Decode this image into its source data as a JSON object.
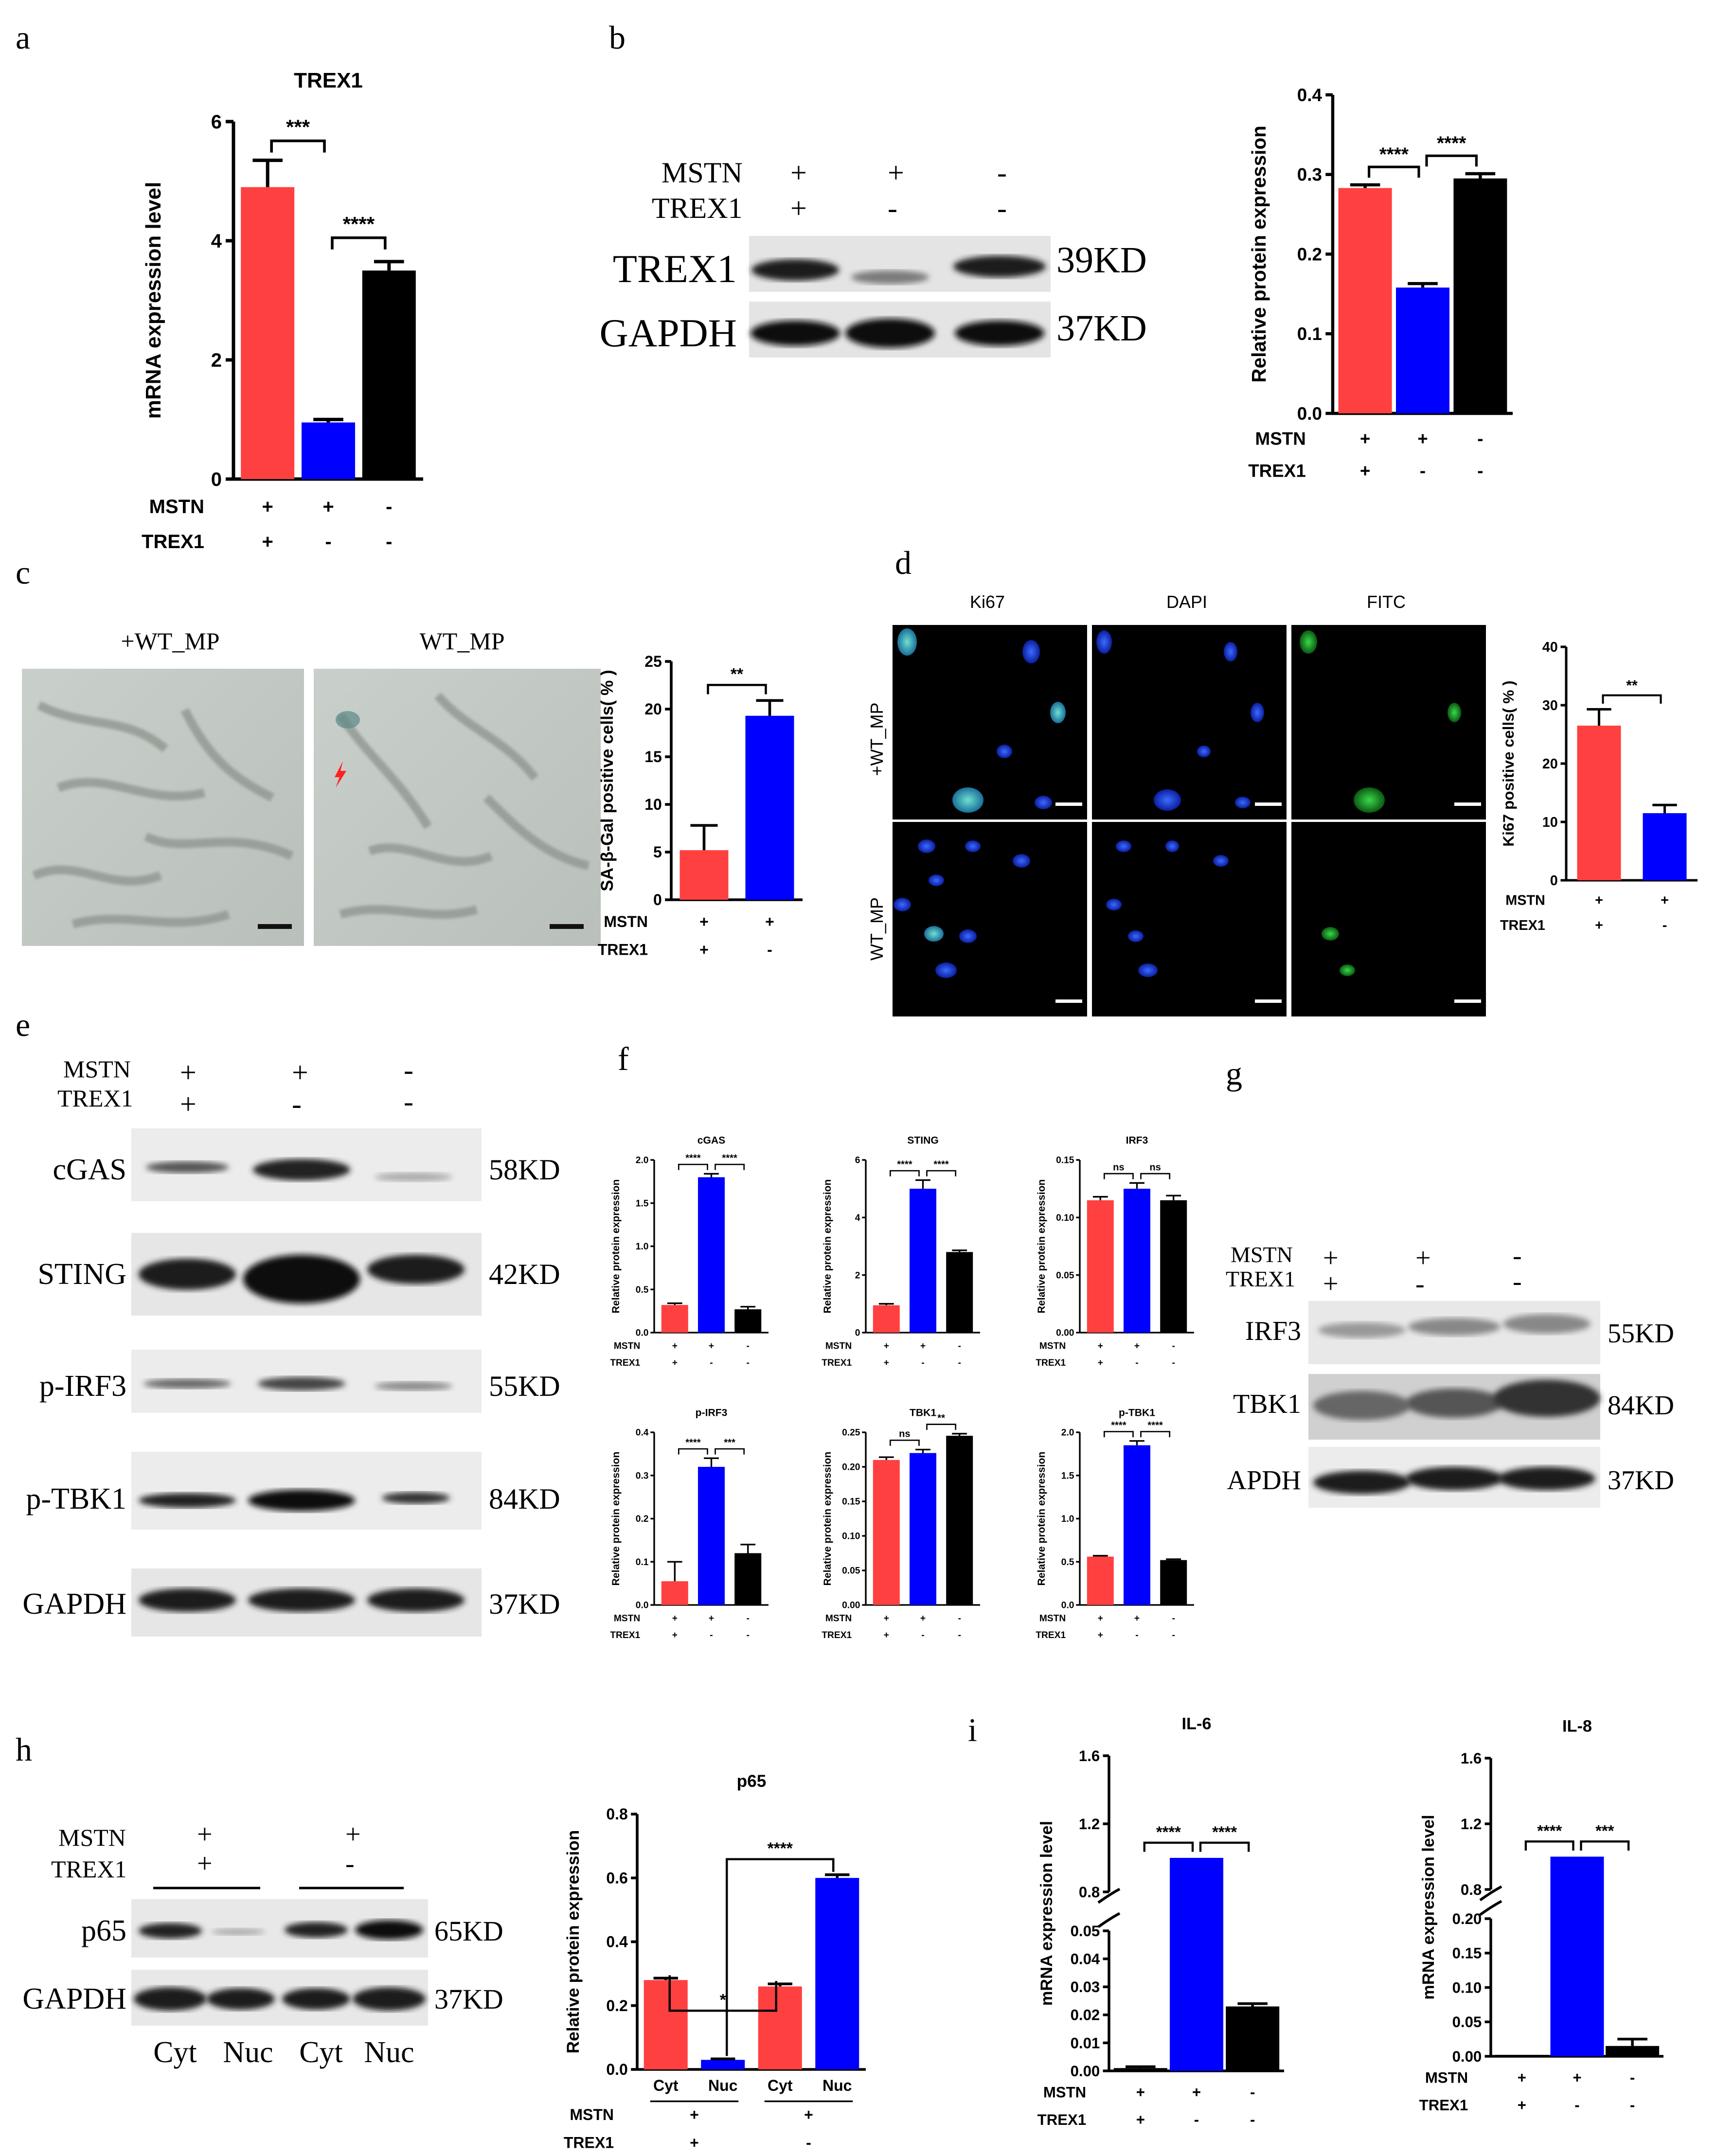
{
  "panel_labels": [
    "a",
    "b",
    "c",
    "d",
    "e",
    "f",
    "g",
    "h",
    "i"
  ],
  "colors": {
    "red": "#ff4040",
    "blue": "#0000ff",
    "black": "#000000"
  },
  "chart_data": [
    {
      "id": "a",
      "type": "bar",
      "title": "TREX1",
      "xlabel": "",
      "ylabel": "mRNA expression level",
      "rows": [
        {
          "name": "MSTN",
          "values": [
            "+",
            "+",
            "-"
          ]
        },
        {
          "name": "TREX1",
          "values": [
            "+",
            "-",
            "-"
          ]
        }
      ],
      "values": [
        4.9,
        0.95,
        3.5
      ],
      "errors": [
        0.45,
        0.05,
        0.15
      ],
      "colors": [
        "#ff4040",
        "#0000ff",
        "#000000"
      ],
      "ylim": [
        0,
        6
      ],
      "yticks": [
        "0",
        "2",
        "4",
        "6"
      ],
      "sig": [
        {
          "from": 0,
          "to": 1,
          "label": "***"
        },
        {
          "from": 1,
          "to": 2,
          "label": "****"
        }
      ]
    },
    {
      "id": "b",
      "type": "bar",
      "title": "",
      "xlabel": "",
      "ylabel": "Relative protein expression",
      "rows": [
        {
          "name": "MSTN",
          "values": [
            "+",
            "+",
            "-"
          ]
        },
        {
          "name": "TREX1",
          "values": [
            "+",
            "-",
            "-"
          ]
        }
      ],
      "values": [
        0.283,
        0.158,
        0.295
      ],
      "errors": [
        0.004,
        0.005,
        0.006
      ],
      "colors": [
        "#ff4040",
        "#0000ff",
        "#000000"
      ],
      "ylim": [
        0,
        0.4
      ],
      "yticks": [
        "0.0",
        "0.1",
        "0.2",
        "0.3",
        "0.4"
      ],
      "sig": [
        {
          "from": 0,
          "to": 1,
          "label": "****"
        },
        {
          "from": 1,
          "to": 2,
          "label": "****"
        }
      ]
    },
    {
      "id": "c",
      "type": "bar",
      "title": "",
      "xlabel": "",
      "ylabel": "SA-β-Gal positive cells( % )",
      "rows": [
        {
          "name": "MSTN",
          "values": [
            "+",
            "+"
          ]
        },
        {
          "name": "TREX1",
          "values": [
            "+",
            "-"
          ]
        }
      ],
      "values": [
        5.2,
        19.3
      ],
      "errors": [
        2.6,
        1.6
      ],
      "colors": [
        "#ff4040",
        "#0000ff"
      ],
      "ylim": [
        0,
        25
      ],
      "yticks": [
        "0",
        "5",
        "10",
        "15",
        "20",
        "25"
      ],
      "sig": [
        {
          "from": 0,
          "to": 1,
          "label": "**"
        }
      ]
    },
    {
      "id": "d",
      "type": "bar",
      "title": "",
      "xlabel": "",
      "ylabel": "Ki67 positive cells( % )",
      "rows": [
        {
          "name": "MSTN",
          "values": [
            "+",
            "+"
          ]
        },
        {
          "name": "TREX1",
          "values": [
            "+",
            "-"
          ]
        }
      ],
      "values": [
        26.5,
        11.5
      ],
      "errors": [
        2.8,
        1.4
      ],
      "colors": [
        "#ff4040",
        "#0000ff"
      ],
      "ylim": [
        0,
        40
      ],
      "yticks": [
        "0",
        "10",
        "20",
        "30",
        "40"
      ],
      "sig": [
        {
          "from": 0,
          "to": 1,
          "label": "**"
        }
      ]
    },
    {
      "id": "f1",
      "type": "bar",
      "title": "cGAS",
      "xlabel": "",
      "ylabel": "Relative protein expression",
      "rows": [
        {
          "name": "MSTN",
          "values": [
            "+",
            "+",
            "-"
          ]
        },
        {
          "name": "TREX1",
          "values": [
            "+",
            "-",
            "-"
          ]
        }
      ],
      "values": [
        0.32,
        1.8,
        0.27
      ],
      "errors": [
        0.02,
        0.04,
        0.03
      ],
      "colors": [
        "#ff4040",
        "#0000ff",
        "#000000"
      ],
      "ylim": [
        0,
        2.0
      ],
      "yticks": [
        "0.0",
        "0.5",
        "1.0",
        "1.5",
        "2.0"
      ],
      "sig": [
        {
          "from": 0,
          "to": 1,
          "label": "****"
        },
        {
          "from": 1,
          "to": 2,
          "label": "****"
        }
      ]
    },
    {
      "id": "f2",
      "type": "bar",
      "title": "STING",
      "xlabel": "",
      "ylabel": "Relative protein expression",
      "rows": [
        {
          "name": "MSTN",
          "values": [
            "+",
            "+",
            "-"
          ]
        },
        {
          "name": "TREX1",
          "values": [
            "+",
            "-",
            "-"
          ]
        }
      ],
      "values": [
        0.95,
        5.0,
        2.8
      ],
      "errors": [
        0.05,
        0.3,
        0.06
      ],
      "colors": [
        "#ff4040",
        "#0000ff",
        "#000000"
      ],
      "ylim": [
        0,
        6
      ],
      "yticks": [
        "0",
        "2",
        "4",
        "6"
      ],
      "sig": [
        {
          "from": 0,
          "to": 1,
          "label": "****"
        },
        {
          "from": 1,
          "to": 2,
          "label": "****"
        }
      ]
    },
    {
      "id": "f3",
      "type": "bar",
      "title": "IRF3",
      "xlabel": "",
      "ylabel": "Relative protein expression",
      "rows": [
        {
          "name": "MSTN",
          "values": [
            "+",
            "+",
            "-"
          ]
        },
        {
          "name": "TREX1",
          "values": [
            "+",
            "-",
            "-"
          ]
        }
      ],
      "values": [
        0.115,
        0.125,
        0.115
      ],
      "errors": [
        0.003,
        0.005,
        0.004
      ],
      "colors": [
        "#ff4040",
        "#0000ff",
        "#000000"
      ],
      "ylim": [
        0,
        0.15
      ],
      "yticks": [
        "0.00",
        "0.05",
        "0.10",
        "0.15"
      ],
      "sig": [
        {
          "from": 0,
          "to": 1,
          "label": "ns"
        },
        {
          "from": 1,
          "to": 2,
          "label": "ns"
        }
      ]
    },
    {
      "id": "f4",
      "type": "bar",
      "title": "p-IRF3",
      "xlabel": "",
      "ylabel": "Relative protein expression",
      "rows": [
        {
          "name": "MSTN",
          "values": [
            "+",
            "+",
            "-"
          ]
        },
        {
          "name": "TREX1",
          "values": [
            "+",
            "-",
            "-"
          ]
        }
      ],
      "values": [
        0.055,
        0.32,
        0.12
      ],
      "errors": [
        0.045,
        0.02,
        0.02
      ],
      "colors": [
        "#ff4040",
        "#0000ff",
        "#000000"
      ],
      "ylim": [
        0,
        0.4
      ],
      "yticks": [
        "0.0",
        "0.1",
        "0.2",
        "0.3",
        "0.4"
      ],
      "sig": [
        {
          "from": 0,
          "to": 1,
          "label": "****"
        },
        {
          "from": 1,
          "to": 2,
          "label": "***"
        }
      ]
    },
    {
      "id": "f5",
      "type": "bar",
      "title": "TBK1",
      "xlabel": "",
      "ylabel": "Relative protein expression",
      "rows": [
        {
          "name": "MSTN",
          "values": [
            "+",
            "+",
            "-"
          ]
        },
        {
          "name": "TREX1",
          "values": [
            "+",
            "-",
            "-"
          ]
        }
      ],
      "values": [
        0.21,
        0.22,
        0.245
      ],
      "errors": [
        0.004,
        0.005,
        0.003
      ],
      "colors": [
        "#ff4040",
        "#0000ff",
        "#000000"
      ],
      "ylim": [
        0,
        0.25
      ],
      "yticks": [
        "0.00",
        "0.05",
        "0.10",
        "0.15",
        "0.20",
        "0.25"
      ],
      "sig": [
        {
          "from": 0,
          "to": 1,
          "label": "ns"
        },
        {
          "from": 1,
          "to": 2,
          "label": "**"
        }
      ]
    },
    {
      "id": "f6",
      "type": "bar",
      "title": "p-TBK1",
      "xlabel": "",
      "ylabel": "Relative protein expression",
      "rows": [
        {
          "name": "MSTN",
          "values": [
            "+",
            "+",
            "-"
          ]
        },
        {
          "name": "TREX1",
          "values": [
            "+",
            "-",
            "-"
          ]
        }
      ],
      "values": [
        0.56,
        1.85,
        0.52
      ],
      "errors": [
        0.01,
        0.05,
        0.01
      ],
      "colors": [
        "#ff4040",
        "#0000ff",
        "#000000"
      ],
      "ylim": [
        0,
        2.0
      ],
      "yticks": [
        "0.0",
        "0.5",
        "1.0",
        "1.5",
        "2.0"
      ],
      "sig": [
        {
          "from": 0,
          "to": 1,
          "label": "****"
        },
        {
          "from": 1,
          "to": 2,
          "label": "****"
        }
      ]
    },
    {
      "id": "h",
      "type": "bar",
      "title": "p65",
      "xlabel": "",
      "ylabel": "Relative protein expression",
      "categories": [
        "Cyt",
        "Nuc",
        "Cyt",
        "Nuc"
      ],
      "rows": [
        {
          "name": "MSTN",
          "values": [
            "+",
            "+"
          ]
        },
        {
          "name": "TREX1",
          "values": [
            "+",
            "-"
          ]
        }
      ],
      "values": [
        0.28,
        0.03,
        0.26,
        0.6
      ],
      "errors": [
        0.006,
        0.003,
        0.008,
        0.01
      ],
      "colors": [
        "#ff4040",
        "#0000ff",
        "#ff4040",
        "#0000ff"
      ],
      "ylim": [
        0,
        0.8
      ],
      "yticks": [
        "0.0",
        "0.2",
        "0.4",
        "0.6",
        "0.8"
      ],
      "sig": [
        {
          "from": 0,
          "to": 2,
          "label": "*"
        },
        {
          "from": 1,
          "to": 3,
          "label": "****"
        }
      ]
    },
    {
      "id": "i1",
      "type": "bar",
      "title": "IL-6",
      "xlabel": "",
      "ylabel": "mRNA expression level",
      "rows": [
        {
          "name": "MSTN",
          "values": [
            "+",
            "+",
            "-"
          ]
        },
        {
          "name": "TREX1",
          "values": [
            "+",
            "-",
            "-"
          ]
        }
      ],
      "values": [
        0.001,
        1.0,
        0.023
      ],
      "errors": [
        0.0005,
        0,
        0.001
      ],
      "colors": [
        "#000000",
        "#0000ff",
        "#000000"
      ],
      "ylim": [
        0,
        1.6
      ],
      "axis_break": [
        0.05,
        0.8
      ],
      "yticks_lower": [
        "0.00",
        "0.01",
        "0.02",
        "0.03",
        "0.04",
        "0.05"
      ],
      "yticks_upper": [
        "0.8",
        "1.2",
        "1.6"
      ],
      "sig": [
        {
          "from": 0,
          "to": 1,
          "label": "****"
        },
        {
          "from": 1,
          "to": 2,
          "label": "****"
        }
      ]
    },
    {
      "id": "i2",
      "type": "bar",
      "title": "IL-8",
      "xlabel": "",
      "ylabel": "mRNA expression level",
      "rows": [
        {
          "name": "MSTN",
          "values": [
            "+",
            "+",
            "-"
          ]
        },
        {
          "name": "TREX1",
          "values": [
            "+",
            "-",
            "-"
          ]
        }
      ],
      "values": [
        0.001,
        1.0,
        0.015
      ],
      "errors": [
        0,
        0,
        0.01
      ],
      "colors": [
        "#000000",
        "#0000ff",
        "#000000"
      ],
      "ylim": [
        0,
        1.6
      ],
      "axis_break": [
        0.2,
        0.8
      ],
      "yticks_lower": [
        "0.00",
        "0.05",
        "0.10",
        "0.15",
        "0.20"
      ],
      "yticks_upper": [
        "0.8",
        "1.2",
        "1.6"
      ],
      "sig": [
        {
          "from": 0,
          "to": 1,
          "label": "****"
        },
        {
          "from": 1,
          "to": 2,
          "label": "***"
        }
      ]
    }
  ],
  "blots": {
    "b": {
      "conditions": {
        "MSTN": [
          "+",
          "+",
          "-"
        ],
        "TREX1": [
          "+",
          "-",
          "-"
        ]
      },
      "bands": [
        {
          "name": "TREX1",
          "kd": "39KD"
        },
        {
          "name": "GAPDH",
          "kd": "37KD"
        }
      ]
    },
    "e": {
      "conditions": {
        "MSTN": [
          "+",
          "+",
          "-"
        ],
        "TREX1": [
          "+",
          "-",
          "-"
        ]
      },
      "bands": [
        {
          "name": "cGAS",
          "kd": "58KD"
        },
        {
          "name": "STING",
          "kd": "42KD"
        },
        {
          "name": "p-IRF3",
          "kd": "55KD"
        },
        {
          "name": "p-TBK1",
          "kd": "84KD"
        },
        {
          "name": "GAPDH",
          "kd": "37KD"
        }
      ]
    },
    "g": {
      "conditions": {
        "MSTN": [
          "+",
          "+",
          "-"
        ],
        "TREX1": [
          "+",
          "-",
          "-"
        ]
      },
      "bands": [
        {
          "name": "IRF3",
          "kd": "55KD"
        },
        {
          "name": "TBK1",
          "kd": "84KD"
        },
        {
          "name": "APDH",
          "kd": "37KD"
        }
      ]
    },
    "h": {
      "conditions": {
        "MSTN": [
          "+",
          "+"
        ],
        "TREX1": [
          "+",
          "-"
        ]
      },
      "bands": [
        {
          "name": "p65",
          "kd": "65KD"
        },
        {
          "name": "GAPDH",
          "kd": "37KD"
        }
      ],
      "lanes": [
        "Cyt",
        "Nuc",
        "Cyt",
        "Nuc"
      ]
    }
  },
  "micrographs": {
    "c": {
      "labels": [
        "+WT_MP",
        "WT_MP"
      ]
    },
    "d": {
      "columns": [
        "Ki67",
        "DAPI",
        "FITC"
      ],
      "rows": [
        "+WT_MP",
        "WT_MP"
      ]
    }
  }
}
